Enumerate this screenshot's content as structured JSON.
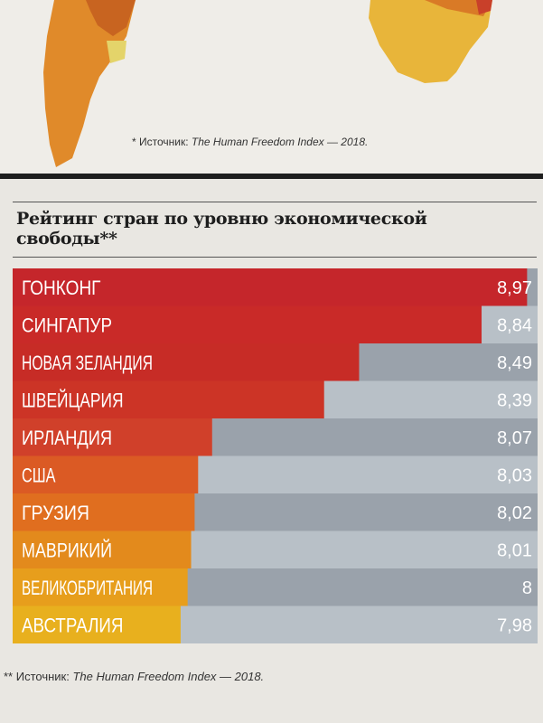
{
  "map_source": {
    "prefix": "* Источник: ",
    "title": "The Human Freedom Index — 2018."
  },
  "chart_title": "Рейтинг стран по уровню экономической свободы**",
  "chart_data": {
    "type": "bar",
    "orientation": "horizontal",
    "title": "Рейтинг стран по уровню экономической свободы**",
    "xlabel": "",
    "ylabel": "",
    "xlim": [
      7.5,
      9.0
    ],
    "categories": [
      "ГОНКОНГ",
      "СИНГАПУР",
      "НОВАЯ ЗЕЛАНДИЯ",
      "ШВЕЙЦАРИЯ",
      "ИРЛАНДИЯ",
      "США",
      "ГРУЗИЯ",
      "МАВРИКИЙ",
      "ВЕЛИКОБРИТАНИЯ",
      "АВСТРАЛИЯ"
    ],
    "values": [
      8.97,
      8.84,
      8.49,
      8.39,
      8.07,
      8.03,
      8.02,
      8.01,
      8,
      7.98
    ],
    "value_labels": [
      "8,97",
      "8,84",
      "8,49",
      "8,39",
      "8,07",
      "8,03",
      "8,02",
      "8,01",
      "8",
      "7,98"
    ],
    "colors": [
      "#c5262b",
      "#c92a28",
      "#c72c26",
      "#cc3426",
      "#d0402a",
      "#db5a24",
      "#e06e1f",
      "#e38a1c",
      "#e79e1c",
      "#e8b01e"
    ],
    "grid": false,
    "legend": "none"
  },
  "chart_source": {
    "prefix": "** Источник: ",
    "title": "The Human Freedom Index — 2018."
  }
}
